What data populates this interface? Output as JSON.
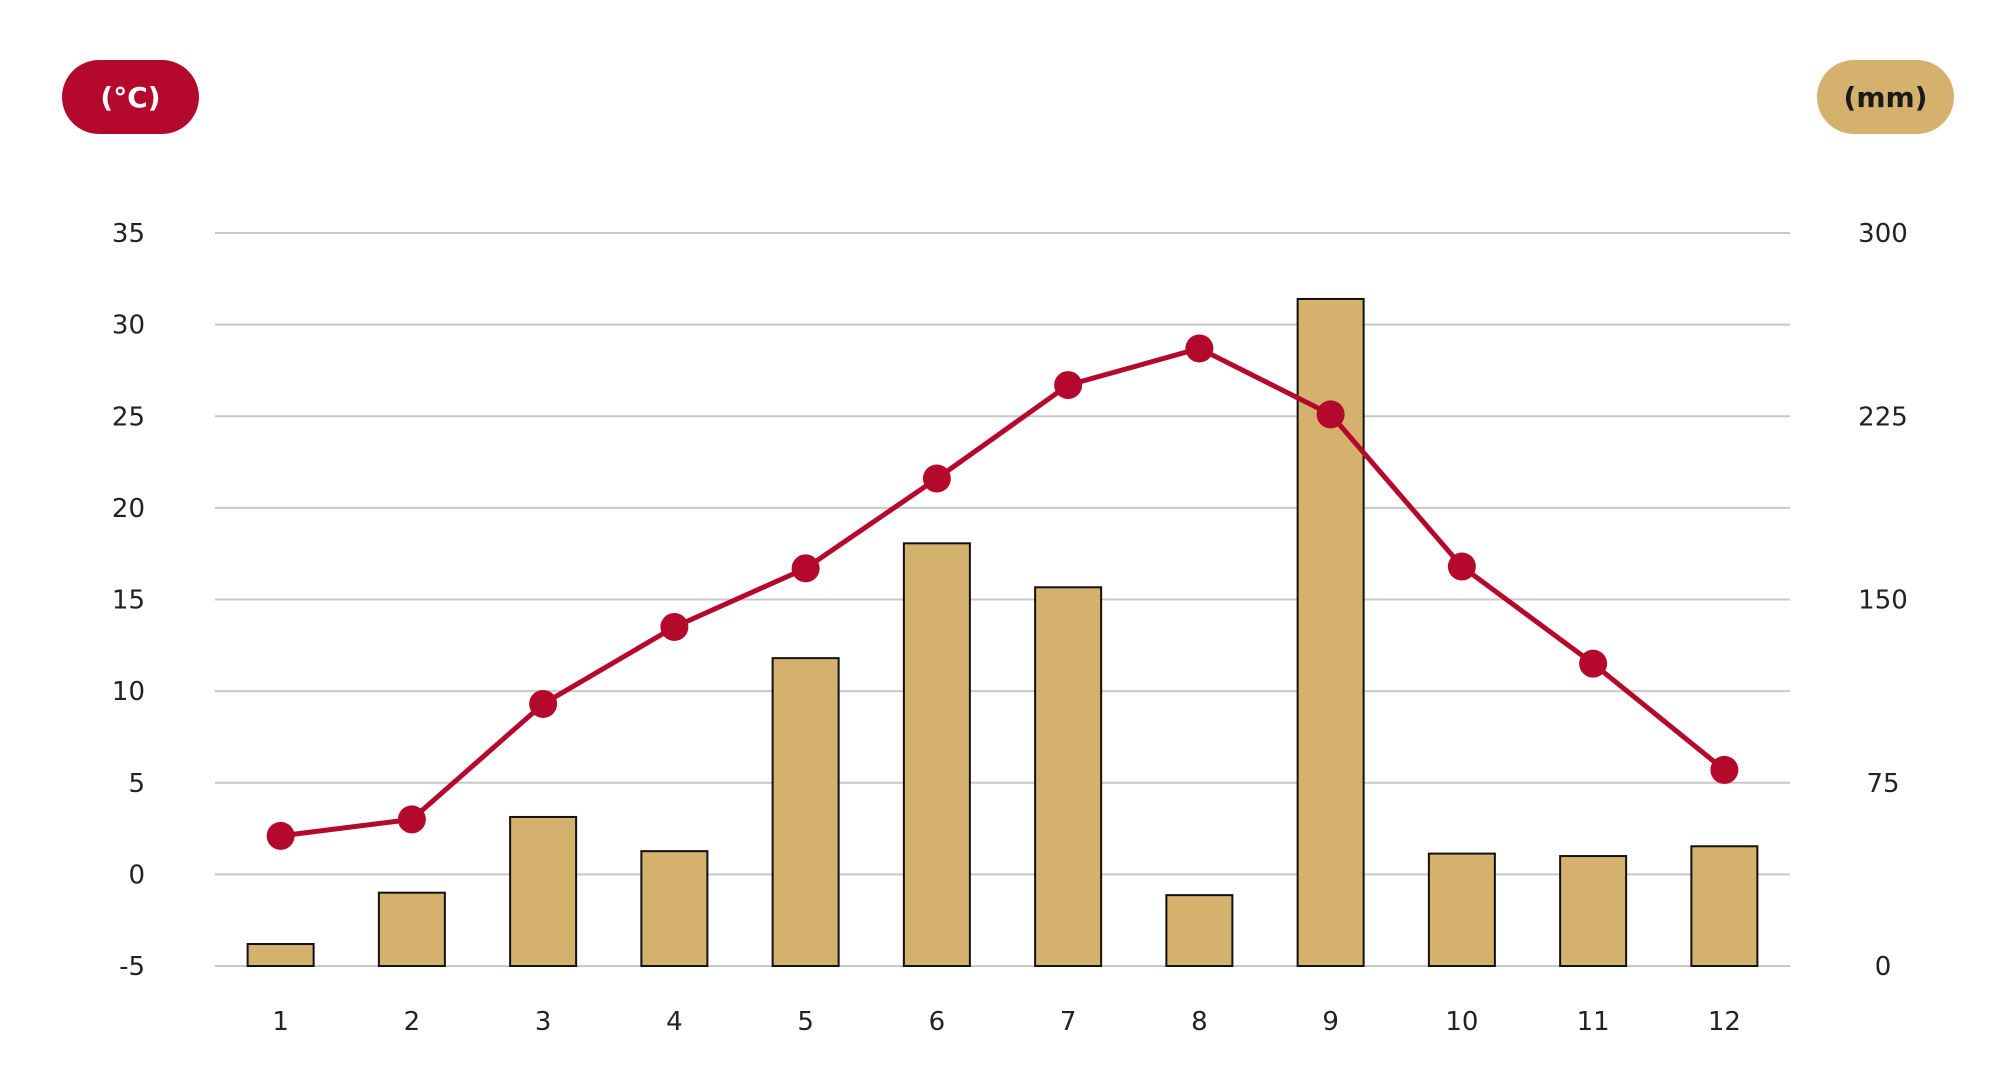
{
  "chart_data": {
    "type": "bar+line",
    "title": "",
    "categories": [
      "1",
      "2",
      "3",
      "4",
      "5",
      "6",
      "7",
      "8",
      "9",
      "10",
      "11",
      "12"
    ],
    "y_left": {
      "unit": "(°C)",
      "range": [
        -5,
        35
      ],
      "ticks": [
        -5,
        0,
        5,
        10,
        15,
        20,
        25,
        30,
        35
      ]
    },
    "y_right": {
      "unit": "(mm)",
      "range": [
        0,
        300
      ],
      "ticks": [
        0,
        75,
        150,
        225,
        300
      ]
    },
    "grid": true,
    "series": [
      {
        "kind": "bar",
        "axis": "right",
        "values": [
          9,
          30,
          61,
          47,
          126,
          173,
          155,
          29,
          273,
          46,
          45,
          49
        ]
      },
      {
        "kind": "line",
        "axis": "left",
        "values": [
          2.1,
          3.0,
          9.3,
          13.5,
          16.7,
          21.6,
          26.7,
          28.7,
          25.1,
          16.8,
          11.5,
          5.7
        ]
      }
    ],
    "colors": {
      "bar_fill": "#d4b26e",
      "bar_stroke": "#111111",
      "line": "#b5082d",
      "grid": "#c8c8c8"
    }
  }
}
